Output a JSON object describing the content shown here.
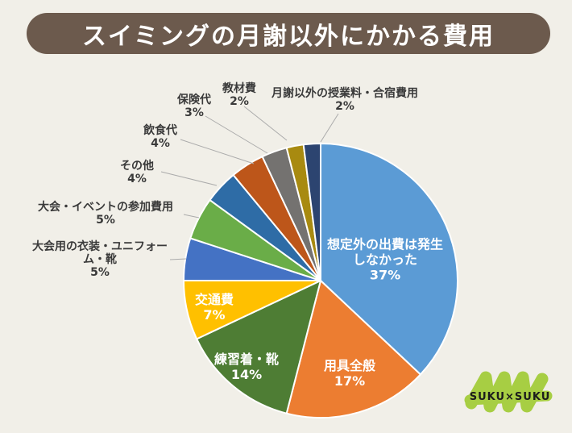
{
  "title": "スイミングの月謝以外にかかる費用",
  "title_bar_color": "#6C5A4D",
  "background_color": "#F1EFE8",
  "logo": {
    "text": "SUKU×SUKU",
    "scribble_color": "#A7CE43"
  },
  "chart_data": {
    "type": "pie",
    "title": "スイミングの月謝以外にかかる費用",
    "unit": "%",
    "order": "clockwise-from-top",
    "leader_line_color": "#ABABAB",
    "slice_border_color": "#FFFFFF",
    "slices": [
      {
        "label": "想定外の出費は発生しなかった",
        "value": 37,
        "color": "#5B9BD5",
        "display_lines": [
          "想定外の出費は発生",
          "しなかった"
        ],
        "pct_label": "37%",
        "label_placement": "inside"
      },
      {
        "label": "用具全般",
        "value": 17,
        "color": "#EC7D31",
        "display_lines": [
          "用具全般"
        ],
        "pct_label": "17%",
        "label_placement": "inside"
      },
      {
        "label": "練習着・靴",
        "value": 14,
        "color": "#4E7D34",
        "display_lines": [
          "練習着・靴"
        ],
        "pct_label": "14%",
        "label_placement": "inside"
      },
      {
        "label": "交通費",
        "value": 7,
        "color": "#FFC000",
        "display_lines": [
          "交通費"
        ],
        "pct_label": "7%",
        "label_placement": "inside"
      },
      {
        "label": "大会用の衣装・ユニフォーム・靴",
        "value": 5,
        "color": "#4472C4",
        "display_lines": [
          "大会用の衣装・ユニフォー",
          "ム・靴"
        ],
        "pct_label": "5%",
        "label_placement": "outside"
      },
      {
        "label": "大会・イベントの参加費用",
        "value": 5,
        "color": "#6AAD48",
        "display_lines": [
          "大会・イベントの参加費用"
        ],
        "pct_label": "5%",
        "label_placement": "outside"
      },
      {
        "label": "その他",
        "value": 4,
        "color": "#2E6CA6",
        "display_lines": [
          "その他"
        ],
        "pct_label": "4%",
        "label_placement": "outside"
      },
      {
        "label": "飲食代",
        "value": 4,
        "color": "#BD561A",
        "display_lines": [
          "飲食代"
        ],
        "pct_label": "4%",
        "label_placement": "outside"
      },
      {
        "label": "保険代",
        "value": 3,
        "color": "#747270",
        "display_lines": [
          "保険代"
        ],
        "pct_label": "3%",
        "label_placement": "outside"
      },
      {
        "label": "教材費",
        "value": 2,
        "color": "#A88A10",
        "display_lines": [
          "教材費"
        ],
        "pct_label": "2%",
        "label_placement": "outside"
      },
      {
        "label": "月謝以外の授業料・合宿費用",
        "value": 2,
        "color": "#2C4470",
        "display_lines": [
          "月謝以外の授業料・合宿費用"
        ],
        "pct_label": "2%",
        "label_placement": "outside"
      }
    ]
  }
}
